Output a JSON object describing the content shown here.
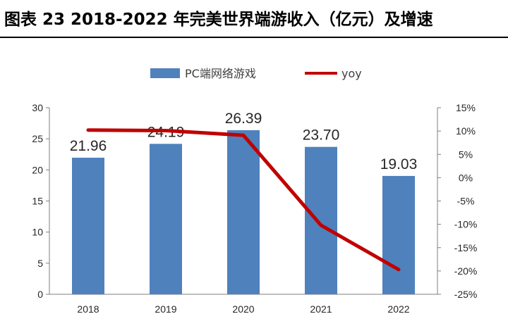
{
  "header": {
    "title": "图表 23 2018-2022 年完美世界端游收入（亿元）及增速"
  },
  "chart_data": {
    "type": "bar",
    "categories": [
      "2018",
      "2019",
      "2020",
      "2021",
      "2022"
    ],
    "series": [
      {
        "name": "PC端网络游戏",
        "kind": "bar",
        "axis": "left",
        "values": [
          21.96,
          24.19,
          26.39,
          23.7,
          19.03
        ],
        "data_labels": [
          "21.96",
          "24.19",
          "26.39",
          "23.70",
          "19.03"
        ],
        "color": "#4f81bd"
      },
      {
        "name": "yoy",
        "kind": "line",
        "axis": "right",
        "values": [
          10.2,
          10.1,
          9.1,
          -10.2,
          -19.7
        ],
        "color": "#c00000"
      }
    ],
    "left_axis": {
      "ylim": [
        0,
        30
      ],
      "ticks": [
        0,
        5,
        10,
        15,
        20,
        25,
        30
      ]
    },
    "right_axis": {
      "ylim": [
        -25,
        15
      ],
      "ticks": [
        15,
        10,
        5,
        0,
        -5,
        -10,
        -15,
        -20,
        -25
      ],
      "tick_labels": [
        "15%",
        "10%",
        "5%",
        "0%",
        "-5%",
        "-10%",
        "-15%",
        "-20%",
        "-25%"
      ]
    },
    "legend": {
      "position": "top"
    },
    "grid": false
  }
}
